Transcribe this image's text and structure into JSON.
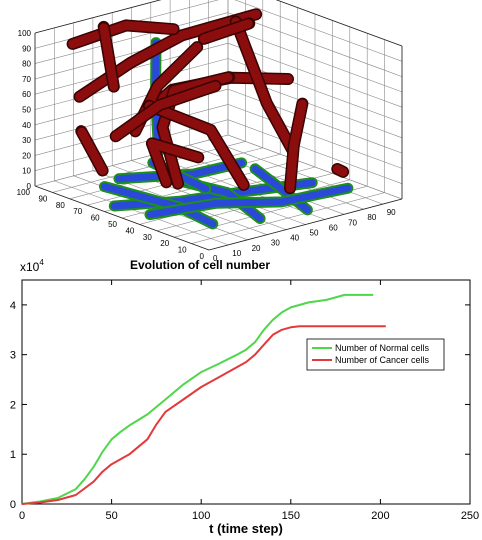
{
  "chart_data": [
    {
      "type": "scatter3d",
      "axes": {
        "x": {
          "ticks": [
            0,
            10,
            20,
            30,
            40,
            50,
            60,
            70,
            80,
            90
          ],
          "range": [
            0,
            100
          ]
        },
        "y": {
          "ticks": [
            0,
            10,
            20,
            30,
            40,
            50,
            60,
            70,
            80,
            90,
            100
          ],
          "range": [
            0,
            100
          ]
        },
        "z": {
          "ticks": [
            0,
            10,
            20,
            30,
            40,
            50,
            60,
            70,
            80,
            90,
            100
          ],
          "range": [
            0,
            100
          ]
        }
      },
      "grid": true,
      "colors": {
        "cancer": "#8b0d0d",
        "cancer_dot": "#3a0303",
        "normal": "#2b49d8",
        "normal_edge": "#1e8f1e"
      }
    },
    {
      "type": "line",
      "title": "Evolution of cell number",
      "xlabel": "t (time step)",
      "ylabel": "",
      "y_scale_label": "x10",
      "y_scale_exp": "4",
      "xlim": [
        0,
        250
      ],
      "ylim": [
        0,
        4.5
      ],
      "xticks": [
        0,
        50,
        100,
        150,
        200,
        250
      ],
      "yticks": [
        0,
        1,
        2,
        3,
        4
      ],
      "legend_position": "right",
      "series": [
        {
          "name": "Number of Normal cells",
          "color": "#4fd64a",
          "x": [
            0,
            10,
            20,
            30,
            35,
            40,
            45,
            50,
            55,
            60,
            70,
            80,
            90,
            100,
            110,
            120,
            125,
            130,
            135,
            140,
            145,
            150,
            160,
            170,
            180,
            190,
            196
          ],
          "y": [
            0,
            0.05,
            0.12,
            0.3,
            0.5,
            0.75,
            1.05,
            1.3,
            1.45,
            1.58,
            1.8,
            2.1,
            2.4,
            2.65,
            2.82,
            3.0,
            3.1,
            3.25,
            3.5,
            3.7,
            3.85,
            3.95,
            4.05,
            4.1,
            4.2,
            4.2,
            4.2
          ]
        },
        {
          "name": "Number of Cancer cells",
          "color": "#e23a3a",
          "x": [
            0,
            10,
            20,
            30,
            40,
            45,
            50,
            60,
            70,
            75,
            80,
            90,
            100,
            110,
            120,
            125,
            130,
            135,
            140,
            145,
            150,
            155,
            160,
            180,
            203
          ],
          "y": [
            0,
            0.03,
            0.08,
            0.18,
            0.45,
            0.65,
            0.8,
            1.0,
            1.3,
            1.6,
            1.85,
            2.1,
            2.35,
            2.55,
            2.75,
            2.85,
            3.0,
            3.2,
            3.4,
            3.5,
            3.55,
            3.57,
            3.57,
            3.57,
            3.57
          ]
        }
      ]
    }
  ]
}
